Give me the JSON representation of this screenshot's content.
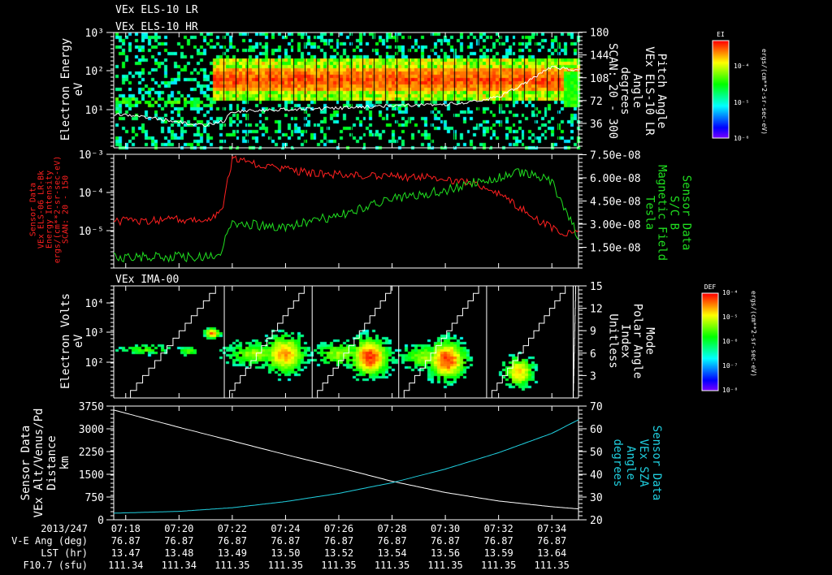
{
  "colors": {
    "background": "#000000",
    "axis": "#ffffff",
    "red_series": "#ff2020",
    "green_series": "#20e020",
    "cyan_series": "#20d0e0"
  },
  "chart_data": [
    {
      "type": "heatmap",
      "titles": [
        "VEx ELS-10 LR",
        "VEx ELS-10 HR"
      ],
      "ylabel": [
        "Electron Energy",
        "eV"
      ],
      "yscale": "log",
      "ylim": [
        1.2,
        1000
      ],
      "yticks": [
        "10³",
        "10²",
        "10¹"
      ],
      "ytick_values": [
        1000,
        100,
        10
      ],
      "y2label": [
        "Pitch Angle",
        "VEx ELS-10 LR",
        "Angle",
        "degrees",
        "SCAN: 20 - 300"
      ],
      "y2lim": [
        0,
        180
      ],
      "y2ticks": [
        "180",
        "144",
        "108",
        "72",
        "36"
      ],
      "y2tick_values": [
        180,
        144,
        108,
        72,
        36
      ],
      "colorbar": {
        "title": "EI",
        "ticks": [
          "10⁻⁴",
          "10⁻⁵",
          "10⁻⁶"
        ],
        "units": "ergs/(cm**2-sr-sec-eV)",
        "range_log": [
          -6,
          -3.7
        ]
      },
      "band_onset_minutes": 21.8,
      "pitch_angle_series": {
        "name": "Pitch Angle",
        "x": [
          17.55,
          19,
          20,
          21,
          21.7,
          22,
          24,
          26,
          28,
          30,
          31,
          32,
          33,
          34,
          35
        ],
        "y": [
          50,
          45,
          38,
          33,
          40,
          55,
          58,
          60,
          64,
          66,
          70,
          78,
          100,
          125,
          120
        ]
      }
    },
    {
      "type": "line",
      "ylabel": [
        "Sensor Data",
        "VEx ELS-06 LR-Bk",
        "Energy Intensity",
        "ergs/(cm**2-sr-sec-eV)",
        "SCAN: 20 - 150"
      ],
      "yscale": "log",
      "ylim": [
        1e-06,
        0.001
      ],
      "yticks": [
        "10⁻³",
        "10⁻⁴",
        "10⁻⁵"
      ],
      "ytick_values": [
        0.001,
        0.0001,
        1e-05
      ],
      "y2label": [
        "Sensor Data",
        "S/C B",
        "Magnetic Field",
        "Tesla"
      ],
      "y2lim": [
        0,
        7.5e-08
      ],
      "y2ticks": [
        "7.50e-08",
        "6.00e-08",
        "4.50e-08",
        "3.00e-08",
        "1.50e-08"
      ],
      "y2tick_values": [
        7.5e-08,
        6e-08,
        4.5e-08,
        3e-08,
        1.5e-08
      ],
      "series": [
        {
          "name": "Energy Intensity",
          "axis": "left",
          "x": [
            17.55,
            21,
            21.6,
            22,
            22.5,
            23.5,
            25,
            27,
            29,
            30,
            31,
            32,
            33,
            34,
            34.5,
            35
          ],
          "log10_y": [
            -4.75,
            -4.7,
            -4.5,
            -3.1,
            -3.2,
            -3.35,
            -3.5,
            -3.55,
            -3.6,
            -3.65,
            -3.75,
            -4.0,
            -4.5,
            -4.95,
            -5.1,
            -5.0
          ]
        },
        {
          "name": "Magnetic Field",
          "axis": "right",
          "x": [
            17.55,
            21.5,
            21.8,
            22,
            24,
            26,
            28,
            30,
            31,
            33,
            34,
            34.7,
            35
          ],
          "y_e8": [
            0.85,
            0.9,
            2.5,
            3.05,
            2.8,
            3.6,
            4.6,
            5.2,
            5.7,
            6.4,
            5.7,
            3.3,
            2.0
          ]
        }
      ]
    },
    {
      "type": "heatmap",
      "titles": [
        "VEx IMA-00"
      ],
      "ylabel": [
        "Electron Volts",
        "eV"
      ],
      "yscale": "log",
      "yticks": [
        "10⁴",
        "10³",
        "10²"
      ],
      "ytick_values": [
        10000,
        1000,
        100
      ],
      "y2label": [
        "Mode",
        "Polar Angle",
        "Index",
        "Unitless"
      ],
      "y2lim": [
        0,
        15
      ],
      "y2ticks": [
        "15",
        "12",
        "9",
        "6",
        "3"
      ],
      "y2tick_values": [
        15,
        12,
        9,
        6,
        3
      ],
      "colorbar": {
        "title": "DEF",
        "ticks": [
          "10⁻⁴",
          "10⁻⁵",
          "10⁻⁶",
          "10⁻⁷",
          "10⁻⁸"
        ],
        "units": "ergs/(cm**2-sr-sec-eV)",
        "range_log": [
          -8,
          -4
        ]
      },
      "polar_index_reset_minutes": [
        21.7,
        25.0,
        28.25,
        31.55,
        34.8
      ],
      "ion_populations": [
        {
          "t": 18.7,
          "log10_e": 2.45,
          "peak": 0.45,
          "st": 0.7,
          "se": 0.12
        },
        {
          "t": 20.3,
          "log10_e": 2.4,
          "peak": 0.5,
          "st": 0.3,
          "se": 0.1
        },
        {
          "t": 21.2,
          "log10_e": 3.0,
          "peak": 0.9,
          "st": 0.2,
          "se": 0.12
        },
        {
          "t": 22.8,
          "log10_e": 2.3,
          "peak": 0.55,
          "st": 0.8,
          "se": 0.3
        },
        {
          "t": 23.9,
          "log10_e": 2.3,
          "peak": 0.8,
          "st": 0.55,
          "se": 0.45
        },
        {
          "t": 26.0,
          "log10_e": 2.3,
          "peak": 0.55,
          "st": 0.7,
          "se": 0.3
        },
        {
          "t": 27.1,
          "log10_e": 2.2,
          "peak": 0.95,
          "st": 0.5,
          "se": 0.45
        },
        {
          "t": 29.2,
          "log10_e": 2.2,
          "peak": 0.55,
          "st": 0.7,
          "se": 0.3
        },
        {
          "t": 30.0,
          "log10_e": 2.1,
          "peak": 0.95,
          "st": 0.5,
          "se": 0.45
        },
        {
          "t": 32.7,
          "log10_e": 1.7,
          "peak": 0.75,
          "st": 0.4,
          "se": 0.35
        }
      ]
    },
    {
      "type": "line",
      "ylabel": [
        "Sensor Data",
        "VEx Alt/Venus/Pd",
        "Distance",
        "km"
      ],
      "ylim": [
        0,
        3750
      ],
      "yticks": [
        "3750",
        "3000",
        "2250",
        "1500",
        "750",
        "0"
      ],
      "ytick_values": [
        3750,
        3000,
        2250,
        1500,
        750,
        0
      ],
      "y2label": [
        "Sensor Data",
        "VEx SZA",
        "Angle",
        "degrees"
      ],
      "y2lim": [
        20,
        70
      ],
      "y2ticks": [
        "70",
        "60",
        "50",
        "40",
        "30",
        "20"
      ],
      "y2tick_values": [
        70,
        60,
        50,
        40,
        30,
        20
      ],
      "series": [
        {
          "name": "Altitude",
          "axis": "left",
          "x": [
            17.55,
            20,
            22,
            24,
            26,
            28,
            30,
            32,
            34,
            35
          ],
          "y": [
            3620,
            3050,
            2600,
            2150,
            1720,
            1270,
            900,
            620,
            430,
            360
          ]
        },
        {
          "name": "SZA",
          "axis": "right",
          "x": [
            17.55,
            20,
            22,
            24,
            26,
            28,
            30,
            32,
            34,
            35
          ],
          "y": [
            22.9,
            23.7,
            25.3,
            28,
            31.6,
            36.3,
            42.3,
            49.5,
            58,
            64
          ]
        }
      ]
    }
  ],
  "x_axis": {
    "unit": "minutes after 07:00",
    "range": [
      17.55,
      35.0
    ],
    "tick_minutes": [
      18,
      20,
      22,
      24,
      26,
      28,
      30,
      32,
      34
    ]
  },
  "ephemeris_table": {
    "row_labels": [
      "2013/247",
      "V-E Ang (deg)",
      "LST (hr)",
      "F10.7 (sfu)"
    ],
    "times": [
      "07:18",
      "07:20",
      "07:22",
      "07:24",
      "07:26",
      "07:28",
      "07:30",
      "07:32",
      "07:34"
    ],
    "ve_ang": [
      "76.87",
      "76.87",
      "76.87",
      "76.87",
      "76.87",
      "76.87",
      "76.87",
      "76.87",
      "76.87"
    ],
    "lst": [
      "13.47",
      "13.48",
      "13.49",
      "13.50",
      "13.52",
      "13.54",
      "13.56",
      "13.59",
      "13.64"
    ],
    "f107": [
      "111.34",
      "111.34",
      "111.35",
      "111.35",
      "111.35",
      "111.35",
      "111.35",
      "111.35",
      "111.35"
    ]
  }
}
